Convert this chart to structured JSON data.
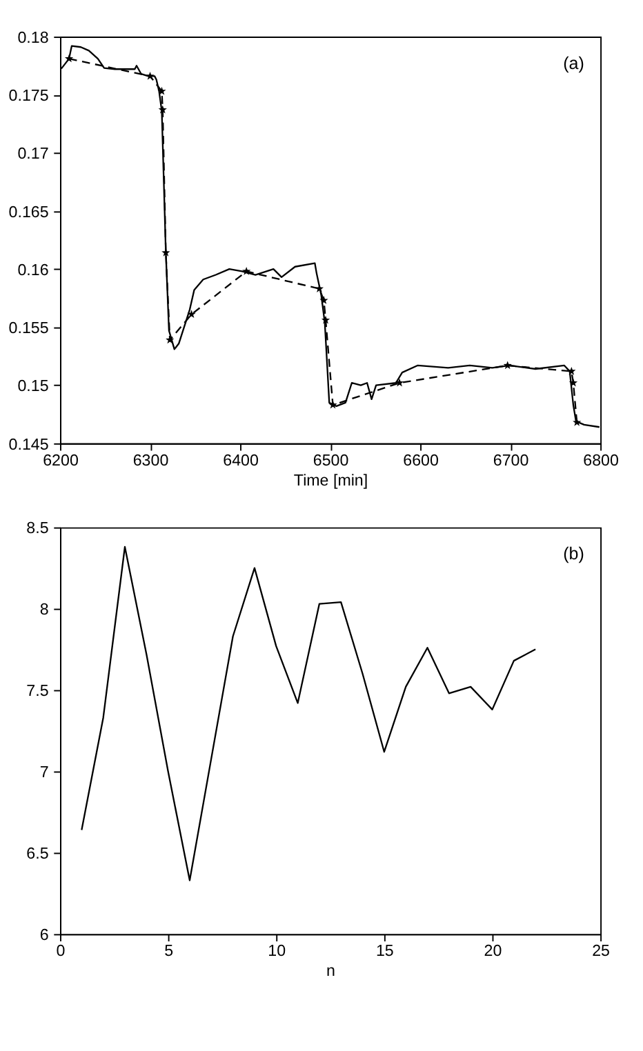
{
  "chart_data": [
    {
      "type": "line",
      "xlabel": "Time [min]",
      "annotations": [
        "(a)"
      ],
      "xlim": [
        6200,
        6800
      ],
      "xticks": [
        6200,
        6300,
        6400,
        6500,
        6600,
        6700,
        6800
      ],
      "ylim": [
        0.145,
        0.18
      ],
      "yticks": [
        0.145,
        0.15,
        0.155,
        0.16,
        0.165,
        0.17,
        0.175,
        0.18
      ],
      "grid": false,
      "series": [
        {
          "color": "#000000",
          "line_style": "solid",
          "marker": "none",
          "x": [
            6200,
            6202,
            6210,
            6213,
            6223,
            6232,
            6242,
            6249,
            6261,
            6283,
            6285,
            6290,
            6298,
            6305,
            6307,
            6310,
            6313,
            6317.5,
            6321,
            6327,
            6332,
            6344,
            6349,
            6359,
            6373,
            6388,
            6402,
            6417,
            6437,
            6446,
            6461,
            6483,
            6485,
            6490,
            6494,
            6499,
            6507,
            6517,
            6524,
            6534,
            6541,
            6546,
            6551,
            6573,
            6580,
            6597,
            6631,
            6655,
            6680,
            6699,
            6728,
            6760,
            6766,
            6770,
            6773,
            6782,
            6799
          ],
          "values": [
            0.1772,
            0.1773,
            0.1781,
            0.1792,
            0.1791,
            0.1788,
            0.1781,
            0.1773,
            0.1772,
            0.1772,
            0.1775,
            0.1768,
            0.1766,
            0.1766,
            0.1763,
            0.1753,
            0.1736,
            0.1614,
            0.1547,
            0.1531,
            0.1536,
            0.1565,
            0.1582,
            0.1591,
            0.1595,
            0.16,
            0.1598,
            0.1595,
            0.16,
            0.1593,
            0.1602,
            0.1605,
            0.1596,
            0.1578,
            0.1554,
            0.1485,
            0.1482,
            0.1485,
            0.1502,
            0.15,
            0.1502,
            0.1488,
            0.15,
            0.1502,
            0.1511,
            0.1517,
            0.1515,
            0.1517,
            0.1515,
            0.1517,
            0.1514,
            0.1517,
            0.1512,
            0.1483,
            0.1469,
            0.1466,
            0.1464
          ]
        },
        {
          "color": "#000000",
          "line_style": "dashed",
          "marker": "star",
          "x": [
            6210,
            6300,
            6313,
            6314,
            6317.5,
            6322,
            6346,
            6407,
            6488,
            6493,
            6495,
            6503,
            6577,
            6697,
            6768,
            6770,
            6774
          ],
          "values": [
            0.1781,
            0.1766,
            0.1753,
            0.1737,
            0.1614,
            0.1539,
            0.1561,
            0.1598,
            0.1583,
            0.1573,
            0.1556,
            0.1483,
            0.1502,
            0.1517,
            0.1512,
            0.1502,
            0.1468
          ]
        }
      ]
    },
    {
      "type": "line",
      "xlabel": "n",
      "annotations": [
        "(b)"
      ],
      "xlim": [
        0,
        25
      ],
      "xticks": [
        0,
        5,
        10,
        15,
        20,
        25
      ],
      "ylim": [
        6,
        8.5
      ],
      "yticks": [
        6,
        6.5,
        7,
        7.5,
        8,
        8.5
      ],
      "grid": false,
      "series": [
        {
          "color": "#000000",
          "line_style": "solid",
          "marker": "none",
          "x": [
            1,
            2,
            3,
            4,
            5,
            6,
            7,
            8,
            9,
            10,
            11,
            12,
            13,
            14,
            15,
            16,
            17,
            18,
            19,
            20,
            21,
            22
          ],
          "values": [
            6.64,
            7.33,
            8.38,
            7.72,
            7.0,
            6.33,
            7.08,
            7.83,
            8.25,
            7.77,
            7.42,
            8.03,
            8.04,
            7.6,
            7.12,
            7.52,
            7.76,
            7.48,
            7.52,
            7.38,
            7.68,
            7.75
          ]
        }
      ]
    }
  ]
}
